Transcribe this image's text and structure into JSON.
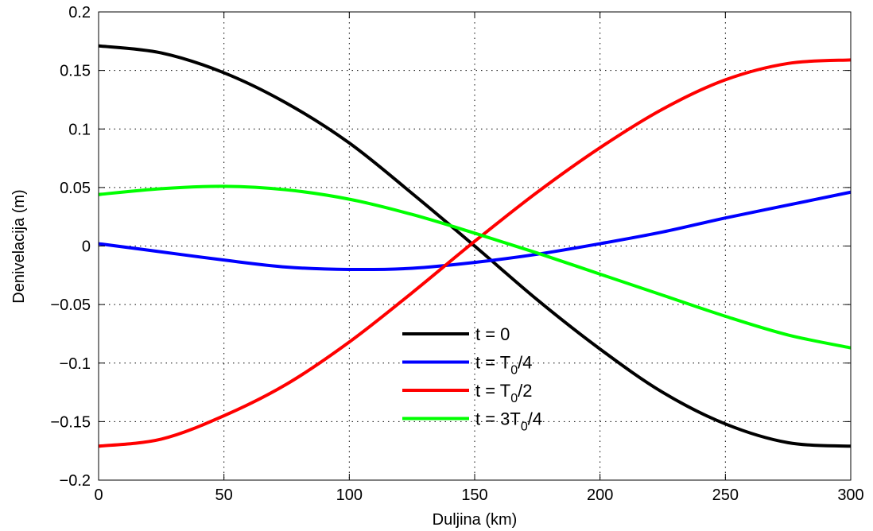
{
  "chart_data": {
    "type": "line",
    "title": "",
    "xlabel": "Duljina (km)",
    "ylabel": "Denivelacija (m)",
    "xlim": [
      0,
      300
    ],
    "ylim": [
      -0.2,
      0.2
    ],
    "xticks": [
      0,
      50,
      100,
      150,
      200,
      250,
      300
    ],
    "xtick_labels": [
      "0",
      "50",
      "100",
      "150",
      "200",
      "250",
      "300"
    ],
    "yticks": [
      -0.2,
      -0.15,
      -0.1,
      -0.05,
      0,
      0.05,
      0.1,
      0.15,
      0.2
    ],
    "ytick_labels": [
      "−0.2",
      "−0.15",
      "−0.1",
      "−0.05",
      "0",
      "0.05",
      "0.1",
      "0.15",
      "0.2"
    ],
    "grid": true,
    "legend_position": "bottom-center",
    "x": [
      0,
      25,
      50,
      75,
      100,
      125,
      150,
      175,
      200,
      225,
      250,
      275,
      300
    ],
    "series": [
      {
        "name": "t = 0",
        "name_parts": [
          "t = 0"
        ],
        "color": "#000000",
        "values": [
          0.171,
          0.165,
          0.148,
          0.122,
          0.088,
          0.045,
          0.0,
          -0.046,
          -0.088,
          -0.125,
          -0.152,
          -0.168,
          -0.171
        ]
      },
      {
        "name": "t = T0/4",
        "name_parts": [
          "t = T",
          "0",
          "/4"
        ],
        "color": "#0000ff",
        "values": [
          0.002,
          -0.005,
          -0.012,
          -0.018,
          -0.02,
          -0.019,
          -0.014,
          -0.007,
          0.002,
          0.012,
          0.024,
          0.035,
          0.046
        ]
      },
      {
        "name": "t = T0/2",
        "name_parts": [
          "t = T",
          "0",
          "/2"
        ],
        "color": "#ff0000",
        "values": [
          -0.171,
          -0.165,
          -0.145,
          -0.118,
          -0.082,
          -0.04,
          0.004,
          0.046,
          0.084,
          0.117,
          0.142,
          0.156,
          0.159
        ]
      },
      {
        "name": "t = 3T0/4",
        "name_parts": [
          "t = 3T",
          "0",
          "/4"
        ],
        "color": "#00ff00",
        "values": [
          0.044,
          0.049,
          0.051,
          0.048,
          0.04,
          0.027,
          0.011,
          -0.006,
          -0.024,
          -0.042,
          -0.06,
          -0.076,
          -0.087
        ]
      }
    ]
  }
}
